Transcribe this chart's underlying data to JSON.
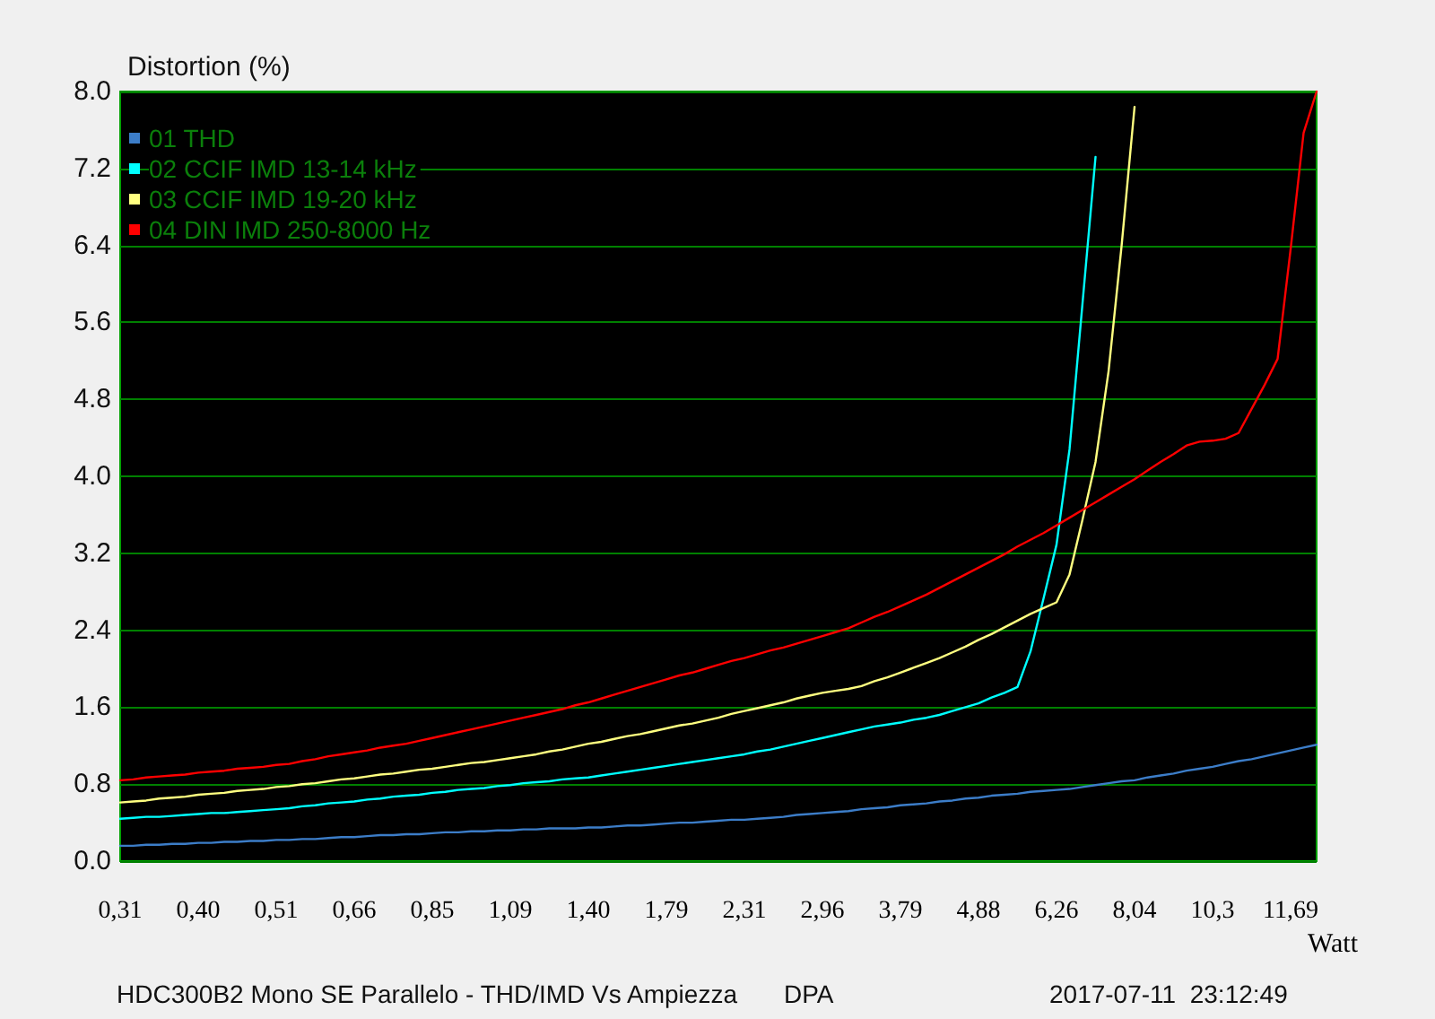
{
  "chart_data": {
    "type": "line",
    "title": "HDC300B2 Mono SE Parallelo - THD/IMD Vs Ampiezza",
    "annotations": [
      "DPA",
      "2017-07-11  23:12:49"
    ],
    "xlabel": "Watt",
    "ylabel": "Distortion (%)",
    "categories": [
      "0,31",
      null,
      null,
      null,
      null,
      null,
      "0,40",
      null,
      null,
      null,
      null,
      null,
      "0,51",
      null,
      null,
      null,
      null,
      null,
      "0,66",
      null,
      null,
      null,
      null,
      null,
      "0,85",
      null,
      null,
      null,
      null,
      null,
      "1,09",
      null,
      null,
      null,
      null,
      null,
      "1,40",
      null,
      null,
      null,
      null,
      null,
      "1,79",
      null,
      null,
      null,
      null,
      null,
      "2,31",
      null,
      null,
      null,
      null,
      null,
      "2,96",
      null,
      null,
      null,
      null,
      null,
      "3,79",
      null,
      null,
      null,
      null,
      null,
      "4,88",
      null,
      null,
      null,
      null,
      null,
      "6,26",
      null,
      null,
      null,
      null,
      null,
      "8,04",
      null,
      null,
      null,
      null,
      null,
      "10,3",
      null,
      null,
      null,
      null,
      null,
      "11,69",
      null,
      null
    ],
    "ylim": [
      0,
      8
    ],
    "yticks": [
      {
        "value": 0,
        "label": "0.0"
      },
      0.8,
      1.6,
      2.4,
      3.2,
      {
        "value": 4,
        "label": "4.0"
      },
      4.8,
      5.6,
      6.4,
      7.2,
      {
        "value": 8,
        "label": "8.0"
      }
    ],
    "grid": "y",
    "legend": "top left",
    "marker": "none",
    "series": [
      {
        "name": "01 THD",
        "color": "#3c7dc8",
        "values": [
          0.16,
          0.16,
          0.17,
          0.17,
          0.18,
          0.18,
          0.19,
          0.19,
          0.2,
          0.2,
          0.21,
          0.21,
          0.22,
          0.22,
          0.23,
          0.23,
          0.24,
          0.25,
          0.25,
          0.26,
          0.27,
          0.27,
          0.28,
          0.28,
          0.29,
          0.3,
          0.3,
          0.31,
          0.31,
          0.32,
          0.32,
          0.33,
          0.33,
          0.34,
          0.34,
          0.34,
          0.35,
          0.35,
          0.36,
          0.37,
          0.37,
          0.38,
          0.39,
          0.4,
          0.4,
          0.41,
          0.42,
          0.43,
          0.43,
          0.44,
          0.45,
          0.46,
          0.48,
          0.49,
          0.5,
          0.51,
          0.52,
          0.54,
          0.55,
          0.56,
          0.58,
          0.59,
          0.6,
          0.62,
          0.63,
          0.65,
          0.66,
          0.68,
          0.69,
          0.7,
          0.72,
          0.73,
          0.74,
          0.75,
          0.77,
          0.79,
          0.81,
          0.83,
          0.84,
          0.87,
          0.89,
          0.91,
          0.94,
          0.96,
          0.98,
          1.01,
          1.04,
          1.06,
          1.09,
          1.12,
          1.15,
          1.18,
          1.21
        ]
      },
      {
        "name": "02 CCIF IMD 13-14 kHz",
        "color": "#00ffff",
        "values": [
          0.44,
          0.45,
          0.46,
          0.46,
          0.47,
          0.48,
          0.49,
          0.5,
          0.5,
          0.51,
          0.52,
          0.53,
          0.54,
          0.55,
          0.57,
          0.58,
          0.6,
          0.61,
          0.62,
          0.64,
          0.65,
          0.67,
          0.68,
          0.69,
          0.71,
          0.72,
          0.74,
          0.75,
          0.76,
          0.78,
          0.79,
          0.81,
          0.82,
          0.83,
          0.85,
          0.86,
          0.87,
          0.89,
          0.91,
          0.93,
          0.95,
          0.97,
          0.99,
          1.01,
          1.03,
          1.05,
          1.07,
          1.09,
          1.11,
          1.14,
          1.16,
          1.19,
          1.22,
          1.25,
          1.28,
          1.31,
          1.34,
          1.37,
          1.4,
          1.42,
          1.44,
          1.47,
          1.49,
          1.52,
          1.56,
          1.6,
          1.64,
          1.7,
          1.75,
          1.81,
          2.18,
          2.73,
          3.29,
          4.28,
          5.8,
          7.32,
          null,
          null,
          null,
          null,
          null,
          null,
          null,
          null,
          null,
          null,
          null,
          null,
          null,
          null,
          null,
          null,
          null
        ]
      },
      {
        "name": "03 CCIF IMD 19-20 kHz",
        "color": "#ffff80",
        "values": [
          0.61,
          0.62,
          0.63,
          0.65,
          0.66,
          0.67,
          0.69,
          0.7,
          0.71,
          0.73,
          0.74,
          0.75,
          0.77,
          0.78,
          0.8,
          0.81,
          0.83,
          0.85,
          0.86,
          0.88,
          0.9,
          0.91,
          0.93,
          0.95,
          0.96,
          0.98,
          1.0,
          1.02,
          1.03,
          1.05,
          1.07,
          1.09,
          1.11,
          1.14,
          1.16,
          1.19,
          1.22,
          1.24,
          1.27,
          1.3,
          1.32,
          1.35,
          1.38,
          1.41,
          1.43,
          1.46,
          1.49,
          1.53,
          1.56,
          1.59,
          1.62,
          1.65,
          1.69,
          1.72,
          1.75,
          1.77,
          1.79,
          1.82,
          1.87,
          1.91,
          1.96,
          2.01,
          2.06,
          2.11,
          2.17,
          2.23,
          2.3,
          2.36,
          2.43,
          2.5,
          2.57,
          2.63,
          2.69,
          2.98,
          3.55,
          4.15,
          5.09,
          6.39,
          7.84,
          null,
          null,
          null,
          null,
          null,
          null,
          null,
          null,
          null,
          null,
          null,
          null,
          null,
          null
        ]
      },
      {
        "name": "04 DIN IMD 250-8000 Hz",
        "color": "#ff0000",
        "values": [
          0.84,
          0.85,
          0.87,
          0.88,
          0.89,
          0.9,
          0.92,
          0.93,
          0.94,
          0.96,
          0.97,
          0.98,
          1.0,
          1.01,
          1.04,
          1.06,
          1.09,
          1.11,
          1.13,
          1.15,
          1.18,
          1.2,
          1.22,
          1.25,
          1.28,
          1.31,
          1.34,
          1.37,
          1.4,
          1.43,
          1.46,
          1.49,
          1.52,
          1.55,
          1.58,
          1.62,
          1.65,
          1.69,
          1.73,
          1.77,
          1.81,
          1.85,
          1.89,
          1.93,
          1.96,
          2.0,
          2.04,
          2.08,
          2.11,
          2.15,
          2.19,
          2.22,
          2.26,
          2.3,
          2.34,
          2.38,
          2.42,
          2.48,
          2.54,
          2.59,
          2.65,
          2.71,
          2.77,
          2.84,
          2.91,
          2.98,
          3.05,
          3.12,
          3.19,
          3.27,
          3.34,
          3.41,
          3.49,
          3.57,
          3.65,
          3.73,
          3.81,
          3.89,
          3.97,
          4.06,
          4.15,
          4.23,
          4.32,
          4.36,
          4.37,
          4.39,
          4.45,
          4.7,
          4.95,
          5.22,
          6.36,
          7.57,
          8.0
        ]
      }
    ]
  }
}
